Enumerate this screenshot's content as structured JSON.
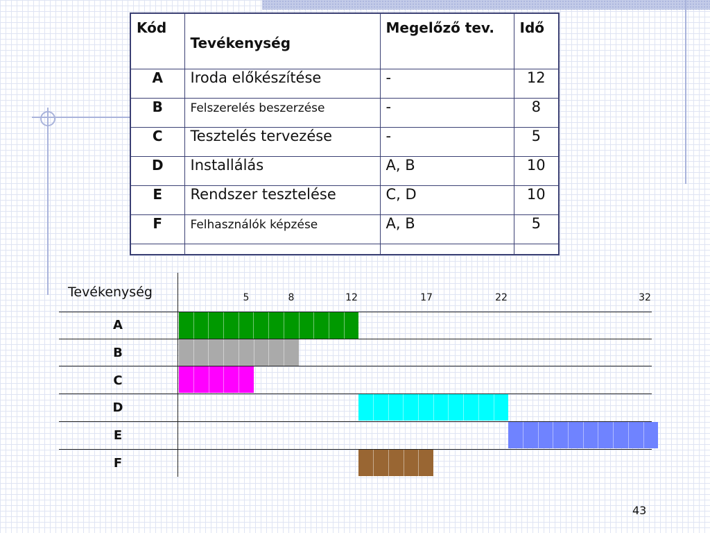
{
  "table": {
    "headers": [
      "Kód",
      "Tevékenység",
      "Megelőző tev.",
      "Idő"
    ],
    "rows": [
      {
        "code": "A",
        "activity": "Iroda előkészítése",
        "prereq": "-",
        "duration": "12"
      },
      {
        "code": "B",
        "activity": "Felszerelés beszerzése",
        "prereq": "-",
        "duration": "8"
      },
      {
        "code": "C",
        "activity": "Tesztelés tervezése",
        "prereq": "-",
        "duration": "5"
      },
      {
        "code": "D",
        "activity": "Installálás",
        "prereq": "A, B",
        "duration": "10"
      },
      {
        "code": "E",
        "activity": "Rendszer tesztelése",
        "prereq": "C, D",
        "duration": "10"
      },
      {
        "code": "F",
        "activity": "Felhasználók képzése",
        "prereq": "A, B",
        "duration": "5"
      }
    ]
  },
  "gantt": {
    "row_header": "Tevékenység",
    "ticks": [
      "5",
      "8",
      "12",
      "17",
      "22",
      "32"
    ],
    "tasks": [
      {
        "code": "A",
        "start": 0,
        "end": 12,
        "color": "#009900"
      },
      {
        "code": "B",
        "start": 0,
        "end": 8,
        "color": "#aaaaaa"
      },
      {
        "code": "C",
        "start": 0,
        "end": 5,
        "color": "#ff00ff"
      },
      {
        "code": "D",
        "start": 12,
        "end": 22,
        "color": "#00ffff"
      },
      {
        "code": "E",
        "start": 22,
        "end": 32,
        "color": "#6f83ff"
      },
      {
        "code": "F",
        "start": 12,
        "end": 17,
        "color": "#996633"
      }
    ]
  },
  "page_number": "43"
}
